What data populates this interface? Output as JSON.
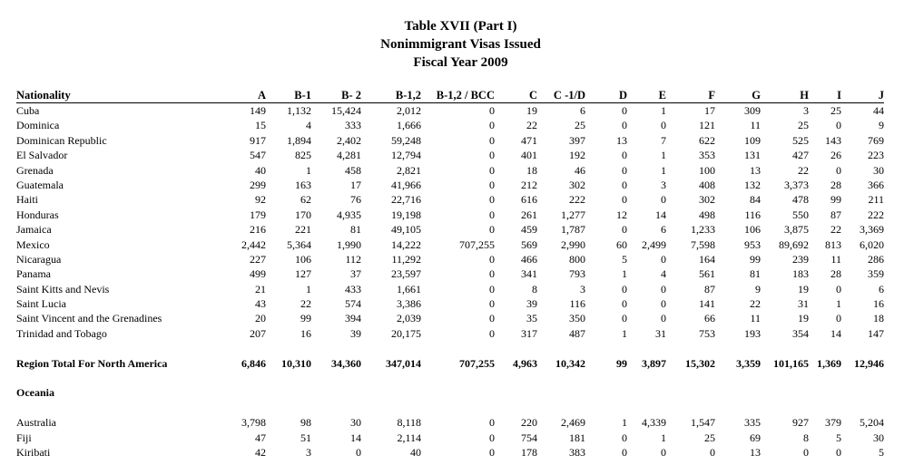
{
  "title": {
    "line1": "Table XVII (Part I)",
    "line2": "Nonimmigrant Visas Issued",
    "line3": "Fiscal Year 2009"
  },
  "columns": [
    "Nationality",
    "A",
    "B-1",
    "B- 2",
    "B-1,2",
    "B-1,2 / BCC",
    "C",
    "C -1/D",
    "D",
    "E",
    "F",
    "G",
    "H",
    "I",
    "J"
  ],
  "rows": [
    [
      "Cuba",
      "149",
      "1,132",
      "15,424",
      "2,012",
      "0",
      "19",
      "6",
      "0",
      "1",
      "17",
      "309",
      "3",
      "25",
      "44"
    ],
    [
      "Dominica",
      "15",
      "4",
      "333",
      "1,666",
      "0",
      "22",
      "25",
      "0",
      "0",
      "121",
      "11",
      "25",
      "0",
      "9"
    ],
    [
      "Dominican Republic",
      "917",
      "1,894",
      "2,402",
      "59,248",
      "0",
      "471",
      "397",
      "13",
      "7",
      "622",
      "109",
      "525",
      "143",
      "769"
    ],
    [
      "El Salvador",
      "547",
      "825",
      "4,281",
      "12,794",
      "0",
      "401",
      "192",
      "0",
      "1",
      "353",
      "131",
      "427",
      "26",
      "223"
    ],
    [
      "Grenada",
      "40",
      "1",
      "458",
      "2,821",
      "0",
      "18",
      "46",
      "0",
      "1",
      "100",
      "13",
      "22",
      "0",
      "30"
    ],
    [
      "Guatemala",
      "299",
      "163",
      "17",
      "41,966",
      "0",
      "212",
      "302",
      "0",
      "3",
      "408",
      "132",
      "3,373",
      "28",
      "366"
    ],
    [
      "Haiti",
      "92",
      "62",
      "76",
      "22,716",
      "0",
      "616",
      "222",
      "0",
      "0",
      "302",
      "84",
      "478",
      "99",
      "211"
    ],
    [
      "Honduras",
      "179",
      "170",
      "4,935",
      "19,198",
      "0",
      "261",
      "1,277",
      "12",
      "14",
      "498",
      "116",
      "550",
      "87",
      "222"
    ],
    [
      "Jamaica",
      "216",
      "221",
      "81",
      "49,105",
      "0",
      "459",
      "1,787",
      "0",
      "6",
      "1,233",
      "106",
      "3,875",
      "22",
      "3,369"
    ],
    [
      "Mexico",
      "2,442",
      "5,364",
      "1,990",
      "14,222",
      "707,255",
      "569",
      "2,990",
      "60",
      "2,499",
      "7,598",
      "953",
      "89,692",
      "813",
      "6,020"
    ],
    [
      "Nicaragua",
      "227",
      "106",
      "112",
      "11,292",
      "0",
      "466",
      "800",
      "5",
      "0",
      "164",
      "99",
      "239",
      "11",
      "286"
    ],
    [
      "Panama",
      "499",
      "127",
      "37",
      "23,597",
      "0",
      "341",
      "793",
      "1",
      "4",
      "561",
      "81",
      "183",
      "28",
      "359"
    ],
    [
      "Saint Kitts and Nevis",
      "21",
      "1",
      "433",
      "1,661",
      "0",
      "8",
      "3",
      "0",
      "0",
      "87",
      "9",
      "19",
      "0",
      "6"
    ],
    [
      "Saint Lucia",
      "43",
      "22",
      "574",
      "3,386",
      "0",
      "39",
      "116",
      "0",
      "0",
      "141",
      "22",
      "31",
      "1",
      "16"
    ],
    [
      "Saint Vincent and the Grenadines",
      "20",
      "99",
      "394",
      "2,039",
      "0",
      "35",
      "350",
      "0",
      "0",
      "66",
      "11",
      "19",
      "0",
      "18"
    ],
    [
      "Trinidad and Tobago",
      "207",
      "16",
      "39",
      "20,175",
      "0",
      "317",
      "487",
      "1",
      "31",
      "753",
      "193",
      "354",
      "14",
      "147"
    ]
  ],
  "region_total": [
    "Region Total For North America",
    "6,846",
    "10,310",
    "34,360",
    "347,014",
    "707,255",
    "4,963",
    "10,342",
    "99",
    "3,897",
    "15,302",
    "3,359",
    "101,165",
    "1,369",
    "12,946"
  ],
  "section_oceania": "Oceania",
  "oceania_rows": [
    [
      "Australia",
      "3,798",
      "98",
      "30",
      "8,118",
      "0",
      "220",
      "2,469",
      "1",
      "4,339",
      "1,547",
      "335",
      "927",
      "379",
      "5,204"
    ],
    [
      "Fiji",
      "47",
      "51",
      "14",
      "2,114",
      "0",
      "754",
      "181",
      "0",
      "1",
      "25",
      "69",
      "8",
      "5",
      "30"
    ],
    [
      "Kiribati",
      "42",
      "3",
      "0",
      "40",
      "0",
      "178",
      "383",
      "0",
      "0",
      "0",
      "13",
      "0",
      "0",
      "5"
    ]
  ]
}
